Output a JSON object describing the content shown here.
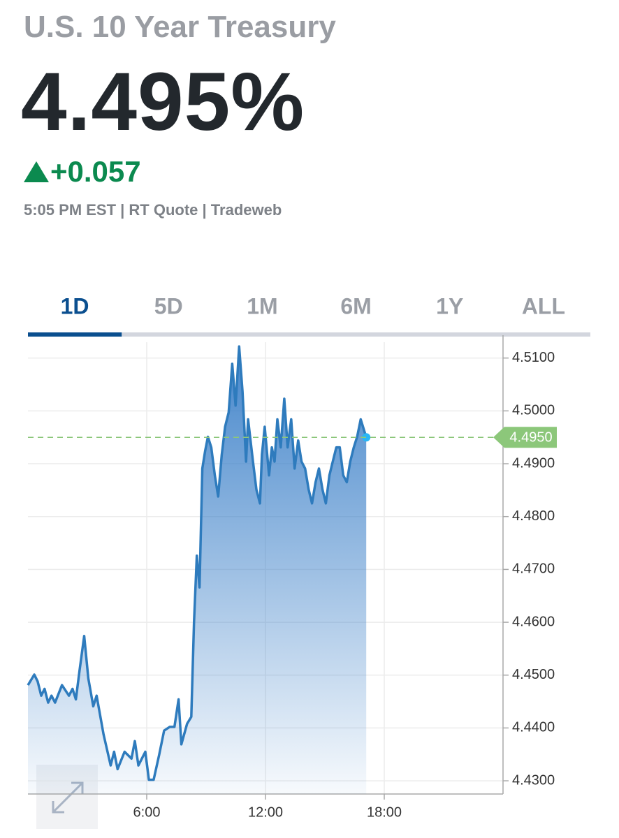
{
  "header": {
    "title": "U.S. 10 Year Treasury",
    "price": "4.495%",
    "change": "+0.057",
    "quote_info": "5:05 PM EST | RT Quote | Tradeweb"
  },
  "tabs": {
    "items": [
      "1D",
      "5D",
      "1M",
      "6M",
      "1Y",
      "ALL"
    ],
    "selected": 0
  },
  "chart_data": {
    "type": "line",
    "color": "#2e7bbd",
    "x": [
      0,
      0.32,
      0.49,
      0.67,
      0.84,
      1.02,
      1.19,
      1.37,
      1.72,
      2.07,
      2.25,
      2.42,
      2.6,
      2.84,
      3.05,
      3.3,
      3.47,
      3.82,
      4.18,
      4.35,
      4.53,
      4.88,
      5.23,
      5.4,
      5.58,
      5.93,
      6.11,
      6.35,
      6.63,
      6.88,
      7.16,
      7.4,
      7.61,
      7.75,
      8.04,
      8.25,
      8.39,
      8.53,
      8.67,
      8.81,
      8.95,
      9.09,
      9.26,
      9.44,
      9.61,
      9.79,
      9.96,
      10.14,
      10.32,
      10.49,
      10.67,
      10.84,
      11.02,
      11.12,
      11.37,
      11.54,
      11.72,
      11.82,
      11.96,
      12.18,
      12.32,
      12.46,
      12.6,
      12.77,
      12.95,
      13.12,
      13.3,
      13.47,
      13.65,
      13.82,
      14,
      14.18,
      14.35,
      14.53,
      14.7,
      14.88,
      15.05,
      15.23,
      15.4,
      15.58,
      15.75,
      15.93,
      16.11,
      16.28,
      16.46,
      16.63,
      16.81,
      17.09
    ],
    "values": [
      4.4481,
      4.4501,
      4.4488,
      4.4461,
      4.4474,
      4.4448,
      4.4461,
      4.4448,
      4.4481,
      4.4461,
      4.4474,
      4.4454,
      4.4507,
      4.4574,
      4.4494,
      4.4441,
      4.4461,
      4.4388,
      4.4329,
      4.4355,
      4.4322,
      4.4355,
      4.4342,
      4.4375,
      4.4329,
      4.4355,
      4.4302,
      4.4302,
      4.4349,
      4.4395,
      4.4402,
      4.4402,
      4.4454,
      4.4369,
      4.4408,
      4.4421,
      4.46,
      4.4726,
      4.4666,
      4.4891,
      4.4924,
      4.4951,
      4.4931,
      4.4878,
      4.4838,
      4.4917,
      4.497,
      4.4997,
      4.5089,
      4.501,
      4.5122,
      4.5037,
      4.4904,
      4.4984,
      4.4904,
      4.4851,
      4.4825,
      4.4917,
      4.497,
      4.4878,
      4.4931,
      4.4904,
      4.4984,
      4.4931,
      4.5023,
      4.4931,
      4.4984,
      4.4891,
      4.4944,
      4.4904,
      4.4891,
      4.4851,
      4.4825,
      4.4865,
      4.4891,
      4.4851,
      4.4825,
      4.4878,
      4.4904,
      4.4931,
      4.4931,
      4.4878,
      4.4865,
      4.4904,
      4.4931,
      4.4951,
      4.4984,
      4.495
    ],
    "current": {
      "value": 4.495,
      "label": "4.4950"
    },
    "xlim": [
      0,
      24
    ],
    "xticks": [
      {
        "value": 6,
        "label": "6:00"
      },
      {
        "value": 12,
        "label": "12:00"
      },
      {
        "value": 18,
        "label": "18:00"
      }
    ],
    "ylim": [
      4.4275,
      4.513
    ],
    "yticks": [
      {
        "value": 4.43,
        "label": "4.4300"
      },
      {
        "value": 4.44,
        "label": "4.4400"
      },
      {
        "value": 4.45,
        "label": "4.4500"
      },
      {
        "value": 4.46,
        "label": "4.4600"
      },
      {
        "value": 4.47,
        "label": "4.4700"
      },
      {
        "value": 4.48,
        "label": "4.4800"
      },
      {
        "value": 4.49,
        "label": "4.4900"
      },
      {
        "value": 4.5,
        "label": "4.5000"
      },
      {
        "value": 4.51,
        "label": "4.5100"
      }
    ],
    "grid": true
  }
}
